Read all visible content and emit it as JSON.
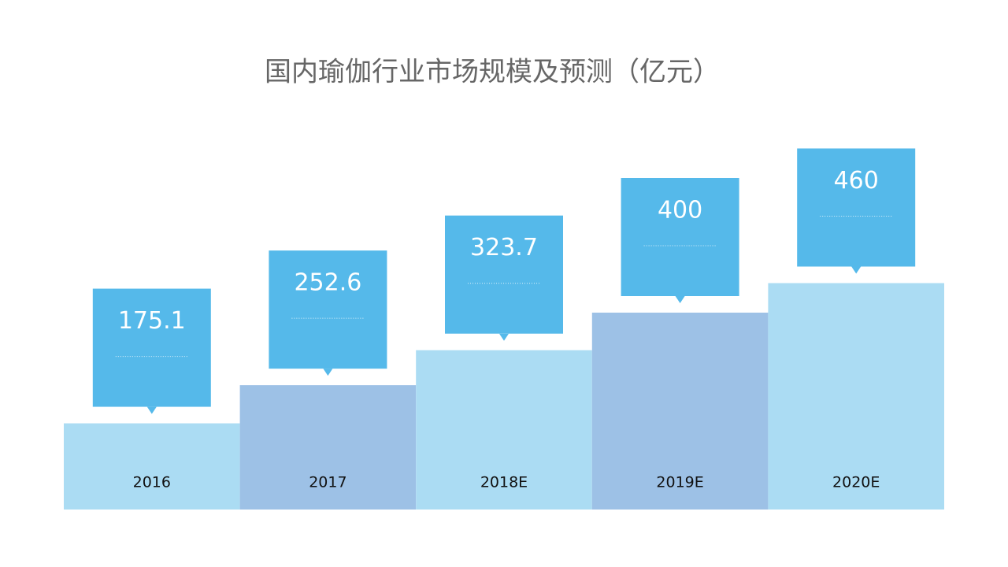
{
  "chart_data": {
    "type": "bar",
    "title": "国内瑜伽行业市场规模及预测（亿元）",
    "categories": [
      "2016",
      "2017",
      "2018E",
      "2019E",
      "2020E"
    ],
    "values": [
      175.1,
      252.6,
      323.7,
      400,
      460
    ],
    "colors": [
      "#abdcf3",
      "#9dc1e6",
      "#abdcf3",
      "#9dc1e6",
      "#abdcf3"
    ],
    "label_color": "#55b9ea"
  }
}
